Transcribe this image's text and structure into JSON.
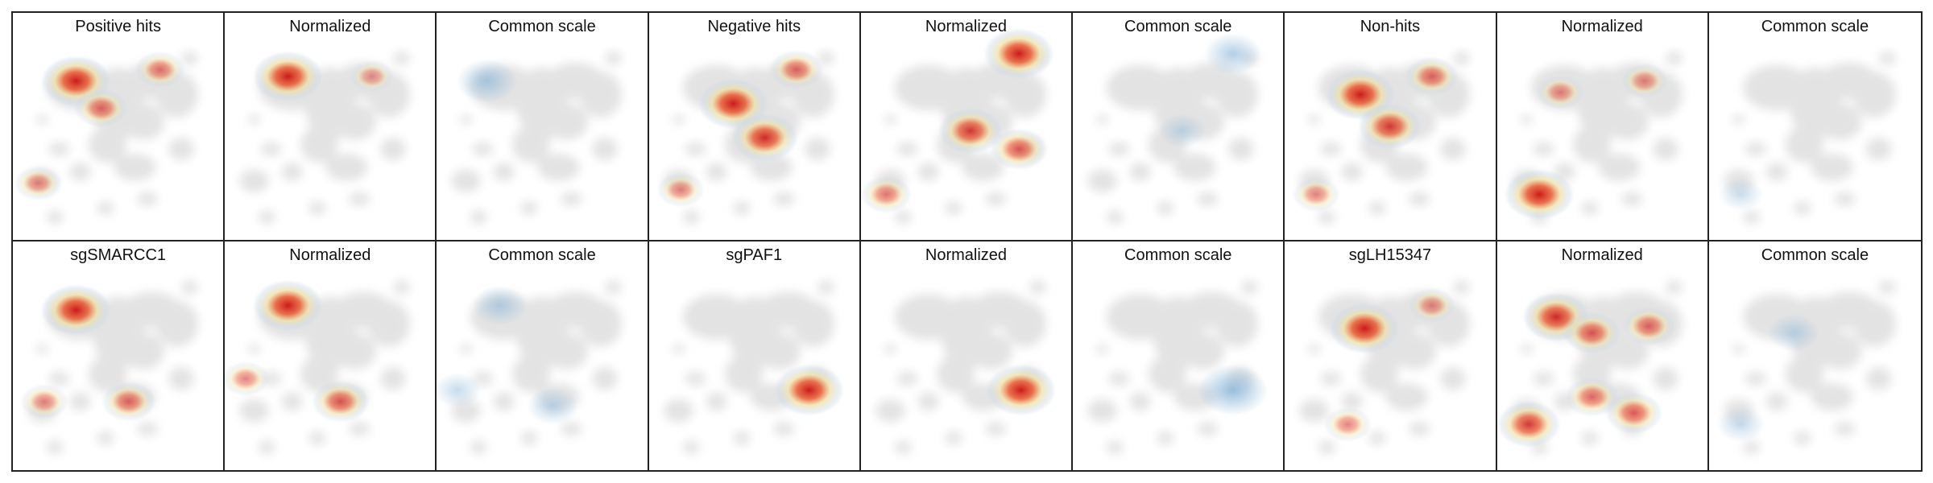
{
  "panels": [
    {
      "title": "Positive hits",
      "mode": "raw",
      "spots": [
        [
          0.3,
          0.3,
          1.0
        ],
        [
          0.42,
          0.42,
          0.5
        ],
        [
          0.7,
          0.25,
          0.4
        ],
        [
          0.12,
          0.75,
          0.3
        ]
      ]
    },
    {
      "title": "Normalized",
      "mode": "norm",
      "spots": [
        [
          0.3,
          0.28,
          1.0
        ],
        [
          0.7,
          0.28,
          0.2
        ]
      ]
    },
    {
      "title": "Common scale",
      "mode": "common",
      "spots": [
        [
          0.24,
          0.3,
          0.7
        ]
      ]
    },
    {
      "title": "Negative hits",
      "mode": "raw",
      "spots": [
        [
          0.4,
          0.4,
          1.0
        ],
        [
          0.55,
          0.55,
          0.9
        ],
        [
          0.7,
          0.25,
          0.5
        ],
        [
          0.15,
          0.78,
          0.3
        ]
      ]
    },
    {
      "title": "Normalized",
      "mode": "norm",
      "spots": [
        [
          0.75,
          0.18,
          1.0
        ],
        [
          0.52,
          0.52,
          0.8
        ],
        [
          0.75,
          0.6,
          0.6
        ],
        [
          0.12,
          0.8,
          0.4
        ]
      ]
    },
    {
      "title": "Common scale",
      "mode": "common",
      "spots": [
        [
          0.76,
          0.18,
          0.6
        ],
        [
          0.52,
          0.52,
          0.3
        ]
      ]
    },
    {
      "title": "Non-hits",
      "mode": "raw",
      "spots": [
        [
          0.36,
          0.36,
          1.0
        ],
        [
          0.5,
          0.5,
          0.8
        ],
        [
          0.7,
          0.28,
          0.5
        ],
        [
          0.15,
          0.8,
          0.3
        ]
      ]
    },
    {
      "title": "Normalized",
      "mode": "norm",
      "spots": [
        [
          0.2,
          0.8,
          1.0
        ],
        [
          0.3,
          0.35,
          0.3
        ],
        [
          0.7,
          0.3,
          0.3
        ]
      ]
    },
    {
      "title": "Common scale",
      "mode": "common",
      "spots": [
        [
          0.15,
          0.8,
          0.2
        ]
      ]
    },
    {
      "title": "sgSMARCC1",
      "mode": "raw",
      "spots": [
        [
          0.3,
          0.3,
          1.0
        ],
        [
          0.55,
          0.7,
          0.5
        ],
        [
          0.15,
          0.7,
          0.3
        ]
      ]
    },
    {
      "title": "Normalized",
      "mode": "norm",
      "spots": [
        [
          0.3,
          0.28,
          1.0
        ],
        [
          0.55,
          0.7,
          0.6
        ],
        [
          0.1,
          0.6,
          0.3
        ]
      ]
    },
    {
      "title": "Common scale",
      "mode": "common",
      "spots": [
        [
          0.3,
          0.28,
          0.5
        ],
        [
          0.55,
          0.72,
          0.4
        ],
        [
          0.1,
          0.65,
          0.3
        ]
      ]
    },
    {
      "title": "sgPAF1",
      "mode": "raw",
      "spots": [
        [
          0.76,
          0.65,
          1.0
        ]
      ]
    },
    {
      "title": "Normalized",
      "mode": "norm",
      "spots": [
        [
          0.76,
          0.65,
          1.0
        ]
      ]
    },
    {
      "title": "Common scale",
      "mode": "common",
      "spots": [
        [
          0.76,
          0.65,
          1.0
        ]
      ]
    },
    {
      "title": "sgLH15347",
      "mode": "raw",
      "spots": [
        [
          0.38,
          0.38,
          1.0
        ],
        [
          0.7,
          0.28,
          0.3
        ],
        [
          0.3,
          0.8,
          0.3
        ]
      ]
    },
    {
      "title": "Normalized",
      "mode": "norm",
      "spots": [
        [
          0.28,
          0.33,
          0.9
        ],
        [
          0.45,
          0.4,
          0.6
        ],
        [
          0.72,
          0.37,
          0.5
        ],
        [
          0.15,
          0.8,
          0.8
        ],
        [
          0.45,
          0.68,
          0.5
        ],
        [
          0.65,
          0.75,
          0.6
        ]
      ]
    },
    {
      "title": "Common scale",
      "mode": "common",
      "spots": [
        [
          0.4,
          0.4,
          0.4
        ],
        [
          0.15,
          0.8,
          0.3
        ]
      ]
    }
  ],
  "colors": {
    "background_cells": "#e3e3e3",
    "low": "#c9d8e6",
    "mid": "#f1e0a0",
    "high": "#cc1a1a",
    "common_low": "#8db7da"
  }
}
